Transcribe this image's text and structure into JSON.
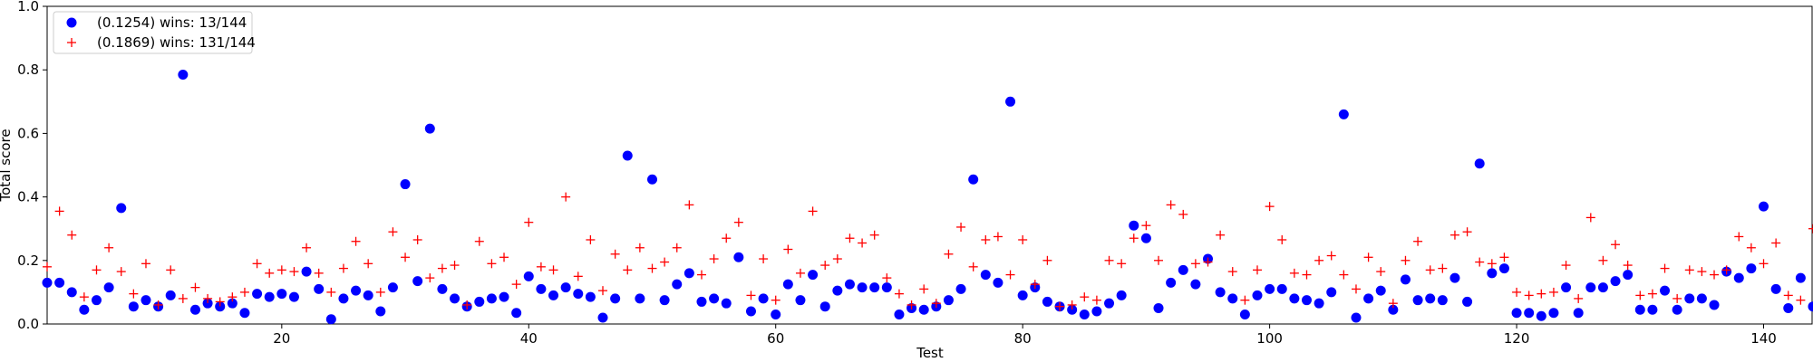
{
  "chart_data": {
    "type": "scatter",
    "xlabel": "Test",
    "ylabel": "Total score",
    "xlim": [
      1,
      144
    ],
    "ylim": [
      0,
      1.0
    ],
    "xticks": [
      20,
      40,
      60,
      80,
      100,
      120,
      140
    ],
    "yticks": [
      0.0,
      0.2,
      0.4,
      0.6,
      0.8,
      1.0
    ],
    "ytick_labels": [
      "0.0",
      "0.2",
      "0.4",
      "0.6",
      "0.8",
      "1.0"
    ],
    "grid": false,
    "legend_position": "top-left",
    "series": [
      {
        "name": "(0.1254) wins: 13/144",
        "marker": "circle",
        "color": "#0000ff",
        "x": [
          1,
          2,
          3,
          4,
          5,
          6,
          7,
          8,
          9,
          10,
          11,
          12,
          13,
          14,
          15,
          16,
          17,
          18,
          19,
          20,
          21,
          22,
          23,
          24,
          25,
          26,
          27,
          28,
          29,
          30,
          31,
          32,
          33,
          34,
          35,
          36,
          37,
          38,
          39,
          40,
          41,
          42,
          43,
          44,
          45,
          46,
          47,
          48,
          49,
          50,
          51,
          52,
          53,
          54,
          55,
          56,
          57,
          58,
          59,
          60,
          61,
          62,
          63,
          64,
          65,
          66,
          67,
          68,
          69,
          70,
          71,
          72,
          73,
          74,
          75,
          76,
          77,
          78,
          79,
          80,
          81,
          82,
          83,
          84,
          85,
          86,
          87,
          88,
          89,
          90,
          91,
          92,
          93,
          94,
          95,
          96,
          97,
          98,
          99,
          100,
          101,
          102,
          103,
          104,
          105,
          106,
          107,
          108,
          109,
          110,
          111,
          112,
          113,
          114,
          115,
          116,
          117,
          118,
          119,
          120,
          121,
          122,
          123,
          124,
          125,
          126,
          127,
          128,
          129,
          130,
          131,
          132,
          133,
          134,
          135,
          136,
          137,
          138,
          139,
          140,
          141,
          142,
          143,
          144
        ],
        "y": [
          0.13,
          0.13,
          0.1,
          0.045,
          0.075,
          0.115,
          0.365,
          0.055,
          0.075,
          0.055,
          0.09,
          0.785,
          0.045,
          0.065,
          0.055,
          0.065,
          0.035,
          0.095,
          0.085,
          0.095,
          0.085,
          0.165,
          0.11,
          0.015,
          0.08,
          0.105,
          0.09,
          0.04,
          0.115,
          0.44,
          0.135,
          0.615,
          0.11,
          0.08,
          0.055,
          0.07,
          0.08,
          0.085,
          0.035,
          0.15,
          0.11,
          0.09,
          0.115,
          0.095,
          0.085,
          0.02,
          0.08,
          0.53,
          0.08,
          0.455,
          0.075,
          0.125,
          0.16,
          0.07,
          0.08,
          0.065,
          0.21,
          0.04,
          0.08,
          0.03,
          0.125,
          0.075,
          0.155,
          0.055,
          0.105,
          0.125,
          0.115,
          0.115,
          0.115,
          0.03,
          0.05,
          0.045,
          0.055,
          0.075,
          0.11,
          0.455,
          0.155,
          0.13,
          0.7,
          0.09,
          0.115,
          0.07,
          0.055,
          0.045,
          0.03,
          0.04,
          0.065,
          0.09,
          0.31,
          0.27,
          0.05,
          0.13,
          0.17,
          0.125,
          0.205,
          0.1,
          0.08,
          0.03,
          0.09,
          0.11,
          0.11,
          0.08,
          0.075,
          0.065,
          0.1,
          0.66,
          0.02,
          0.08,
          0.105,
          0.045,
          0.14,
          0.075,
          0.08,
          0.075,
          0.145,
          0.07,
          0.505,
          0.16,
          0.175,
          0.035,
          0.035,
          0.025,
          0.035,
          0.115,
          0.035,
          0.115,
          0.115,
          0.135,
          0.155,
          0.045,
          0.045,
          0.105,
          0.045,
          0.08,
          0.08,
          0.06,
          0.165,
          0.145,
          0.175,
          0.37,
          0.11,
          0.05,
          0.145,
          0.055
        ]
      },
      {
        "name": "(0.1869) wins: 131/144",
        "marker": "plus",
        "color": "#ff0000",
        "x": [
          1,
          2,
          3,
          4,
          5,
          6,
          7,
          8,
          9,
          10,
          11,
          12,
          13,
          14,
          15,
          16,
          17,
          18,
          19,
          20,
          21,
          22,
          23,
          24,
          25,
          26,
          27,
          28,
          29,
          30,
          31,
          32,
          33,
          34,
          35,
          36,
          37,
          38,
          39,
          40,
          41,
          42,
          43,
          44,
          45,
          46,
          47,
          48,
          49,
          50,
          51,
          52,
          53,
          54,
          55,
          56,
          57,
          58,
          59,
          60,
          61,
          62,
          63,
          64,
          65,
          66,
          67,
          68,
          69,
          70,
          71,
          72,
          73,
          74,
          75,
          76,
          77,
          78,
          79,
          80,
          81,
          82,
          83,
          84,
          85,
          86,
          87,
          88,
          89,
          90,
          91,
          92,
          93,
          94,
          95,
          96,
          97,
          98,
          99,
          100,
          101,
          102,
          103,
          104,
          105,
          106,
          107,
          108,
          109,
          110,
          111,
          112,
          113,
          114,
          115,
          116,
          117,
          118,
          119,
          120,
          121,
          122,
          123,
          124,
          125,
          126,
          127,
          128,
          129,
          130,
          131,
          132,
          133,
          134,
          135,
          136,
          137,
          138,
          139,
          140,
          141,
          142,
          143,
          144
        ],
        "y": [
          0.18,
          0.355,
          0.28,
          0.085,
          0.17,
          0.24,
          0.165,
          0.095,
          0.19,
          0.06,
          0.17,
          0.08,
          0.115,
          0.08,
          0.07,
          0.085,
          0.1,
          0.19,
          0.16,
          0.17,
          0.165,
          0.24,
          0.16,
          0.1,
          0.175,
          0.26,
          0.19,
          0.1,
          0.29,
          0.21,
          0.265,
          0.145,
          0.175,
          0.185,
          0.06,
          0.26,
          0.19,
          0.21,
          0.125,
          0.32,
          0.18,
          0.17,
          0.4,
          0.15,
          0.265,
          0.105,
          0.22,
          0.17,
          0.24,
          0.175,
          0.195,
          0.24,
          0.375,
          0.155,
          0.205,
          0.27,
          0.32,
          0.09,
          0.205,
          0.075,
          0.235,
          0.16,
          0.355,
          0.185,
          0.205,
          0.27,
          0.255,
          0.28,
          0.145,
          0.095,
          0.06,
          0.11,
          0.065,
          0.22,
          0.305,
          0.18,
          0.265,
          0.275,
          0.155,
          0.265,
          0.125,
          0.2,
          0.055,
          0.06,
          0.085,
          0.075,
          0.2,
          0.19,
          0.27,
          0.31,
          0.2,
          0.375,
          0.345,
          0.19,
          0.195,
          0.28,
          0.165,
          0.075,
          0.17,
          0.37,
          0.265,
          0.16,
          0.155,
          0.2,
          0.215,
          0.155,
          0.11,
          0.21,
          0.165,
          0.065,
          0.2,
          0.26,
          0.17,
          0.175,
          0.28,
          0.29,
          0.195,
          0.19,
          0.21,
          0.1,
          0.09,
          0.095,
          0.1,
          0.185,
          0.08,
          0.335,
          0.2,
          0.25,
          0.185,
          0.09,
          0.095,
          0.175,
          0.08,
          0.17,
          0.165,
          0.155,
          0.17,
          0.275,
          0.24,
          0.19,
          0.255,
          0.09,
          0.075,
          0.3
        ]
      }
    ]
  }
}
